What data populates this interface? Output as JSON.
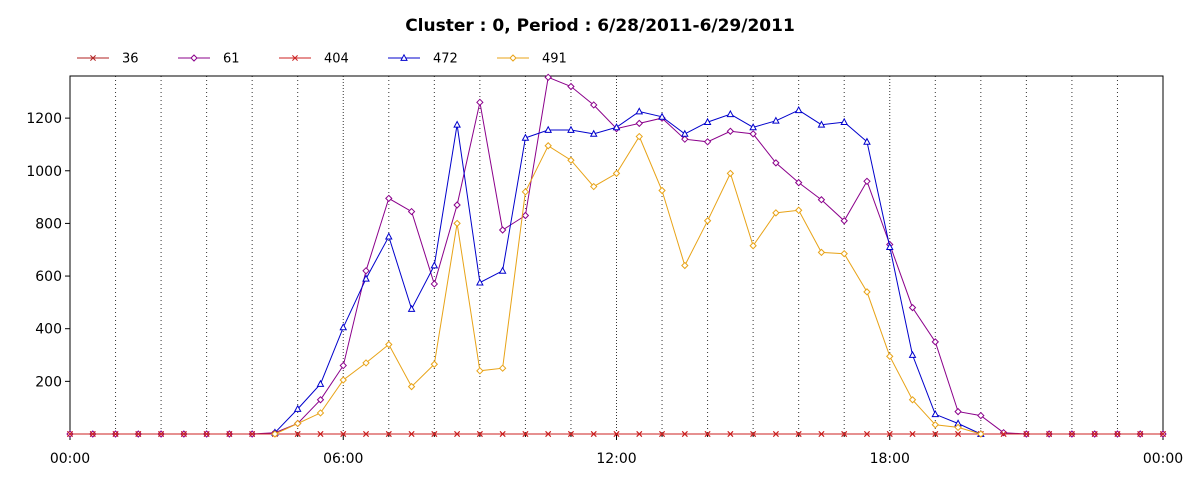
{
  "chart_data": {
    "type": "line",
    "title": "Cluster : 0, Period : 6/28/2011-6/29/2011",
    "xlabel": "",
    "ylabel": "",
    "x_tick_labels": [
      "00:00",
      "06:00",
      "12:00",
      "18:00",
      "00:00"
    ],
    "x_tick_hours": [
      0,
      6,
      12,
      18,
      24
    ],
    "y_ticks": [
      200,
      400,
      600,
      800,
      1000,
      1200
    ],
    "ylim": [
      0,
      1360
    ],
    "xlim_hours": [
      0,
      24
    ],
    "grid": true,
    "legend_position": "top-left",
    "series": [
      {
        "name": "36",
        "color": "#b22222",
        "marker": "x",
        "hours": [
          0,
          0.5,
          1,
          1.5,
          2,
          2.5,
          3,
          3.5,
          4,
          4.5,
          5,
          5.5,
          6,
          6.5,
          7,
          7.5,
          8,
          8.5,
          9,
          9.5,
          10,
          10.5,
          11,
          11.5,
          12,
          12.5,
          13,
          13.5,
          14,
          14.5,
          15,
          15.5,
          16,
          16.5,
          17,
          17.5,
          18,
          18.5,
          19,
          19.5,
          20,
          20.5,
          21,
          21.5,
          22,
          22.5,
          23,
          23.5,
          24
        ],
        "values": [
          0,
          0,
          0,
          0,
          0,
          0,
          0,
          0,
          0,
          0,
          0,
          0,
          0,
          0,
          0,
          0,
          0,
          0,
          0,
          0,
          0,
          0,
          0,
          0,
          0,
          0,
          0,
          0,
          0,
          0,
          0,
          0,
          0,
          0,
          0,
          0,
          0,
          0,
          0,
          0,
          0,
          0,
          0,
          0,
          0,
          0,
          0,
          0,
          0
        ]
      },
      {
        "name": "61",
        "color": "#8b008b",
        "marker": "diamond",
        "hours": [
          0,
          0.5,
          1,
          1.5,
          2,
          2.5,
          3,
          3.5,
          4,
          4.5,
          5,
          5.5,
          6,
          6.5,
          7,
          7.5,
          8,
          8.5,
          9,
          9.5,
          10,
          10.5,
          11,
          11.5,
          12,
          12.5,
          13,
          13.5,
          14,
          14.5,
          15,
          15.5,
          16,
          16.5,
          17,
          17.5,
          18,
          18.5,
          19,
          19.5,
          20,
          20.5,
          21,
          21.5,
          22,
          22.5,
          23,
          23.5,
          24
        ],
        "values": [
          0,
          0,
          0,
          0,
          0,
          0,
          0,
          0,
          0,
          5,
          40,
          130,
          260,
          620,
          895,
          845,
          570,
          870,
          1260,
          775,
          830,
          1355,
          1320,
          1250,
          1160,
          1180,
          1200,
          1120,
          1110,
          1150,
          1140,
          1030,
          955,
          890,
          810,
          960,
          720,
          480,
          350,
          85,
          70,
          5,
          0,
          0,
          0,
          0,
          0,
          0,
          0
        ]
      },
      {
        "name": "404",
        "color": "#cc2222",
        "marker": "x",
        "hours": [
          0,
          0.5,
          1,
          1.5,
          2,
          2.5,
          3,
          3.5,
          4,
          4.5,
          5,
          5.5,
          6,
          6.5,
          7,
          7.5,
          8,
          8.5,
          9,
          9.5,
          10,
          10.5,
          11,
          11.5,
          12,
          12.5,
          13,
          13.5,
          14,
          14.5,
          15,
          15.5,
          16,
          16.5,
          17,
          17.5,
          18,
          18.5,
          19,
          19.5,
          20,
          20.5,
          21,
          21.5,
          22,
          22.5,
          23,
          23.5,
          24
        ],
        "values": [
          0,
          0,
          0,
          0,
          0,
          0,
          0,
          0,
          0,
          0,
          0,
          0,
          0,
          0,
          0,
          0,
          0,
          0,
          0,
          0,
          0,
          0,
          0,
          0,
          0,
          0,
          0,
          0,
          0,
          0,
          0,
          0,
          0,
          0,
          0,
          0,
          0,
          0,
          0,
          0,
          0,
          0,
          0,
          0,
          0,
          0,
          0,
          0,
          0
        ]
      },
      {
        "name": "472",
        "color": "#0000cc",
        "marker": "triangle",
        "hours": [
          4.5,
          5,
          5.5,
          6,
          6.5,
          7,
          7.5,
          8,
          8.5,
          9,
          9.5,
          10,
          10.5,
          11,
          11.5,
          12,
          12.5,
          13,
          13.5,
          14,
          14.5,
          15,
          15.5,
          16,
          16.5,
          17,
          17.5,
          18,
          18.5,
          19,
          19.5,
          20
        ],
        "values": [
          5,
          95,
          190,
          405,
          590,
          750,
          475,
          640,
          1175,
          575,
          620,
          1125,
          1155,
          1155,
          1140,
          1165,
          1225,
          1205,
          1140,
          1185,
          1215,
          1165,
          1190,
          1230,
          1175,
          1185,
          1110,
          710,
          300,
          75,
          40,
          0
        ]
      },
      {
        "name": "491",
        "color": "#e8a317",
        "marker": "diamond",
        "hours": [
          4.5,
          5,
          5.5,
          6,
          6.5,
          7,
          7.5,
          8,
          8.5,
          9,
          9.5,
          10,
          10.5,
          11,
          11.5,
          12,
          12.5,
          13,
          13.5,
          14,
          14.5,
          15,
          15.5,
          16,
          16.5,
          17,
          17.5,
          18,
          18.5,
          19,
          19.5,
          20
        ],
        "values": [
          0,
          40,
          80,
          205,
          270,
          340,
          180,
          265,
          800,
          240,
          250,
          920,
          1095,
          1040,
          940,
          990,
          1130,
          925,
          640,
          810,
          990,
          715,
          840,
          850,
          690,
          685,
          540,
          295,
          130,
          35,
          25,
          0
        ]
      }
    ]
  }
}
